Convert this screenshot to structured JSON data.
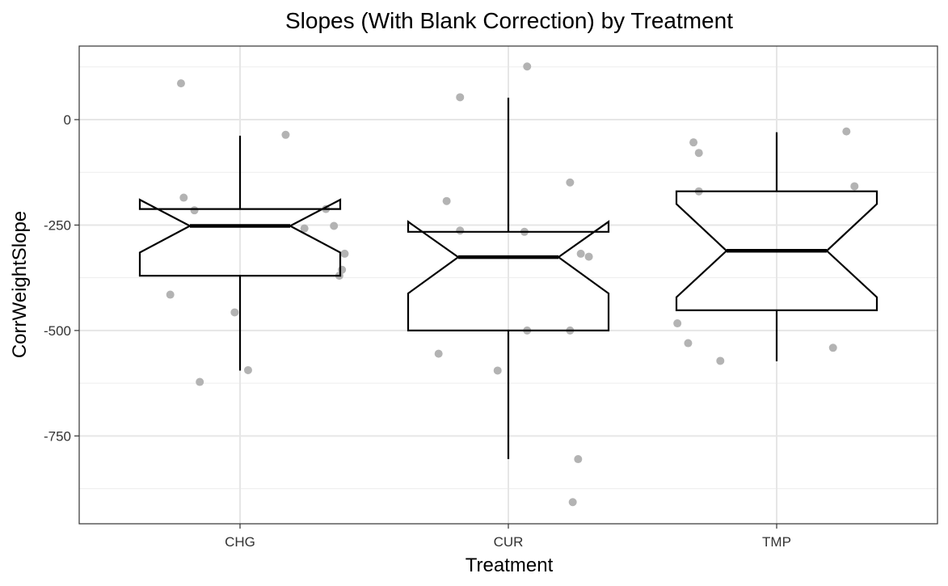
{
  "chart_data": {
    "type": "boxplot",
    "title": "Slopes (With Blank Correction) by Treatment",
    "xlabel": "Treatment",
    "ylabel": "CorrWeightSlope",
    "categories": [
      "CHG",
      "CUR",
      "TMP"
    ],
    "ylim": [
      -960,
      175
    ],
    "y_ticks": [
      0,
      -250,
      -500,
      -750
    ],
    "y_tick_labels": [
      "0",
      "-250",
      "-500",
      "-750"
    ],
    "notched": true,
    "grid": true,
    "boxes": [
      {
        "category": "CHG",
        "whisker_low": -595,
        "q1": -370,
        "median": -252,
        "q3": -212,
        "whisker_high": -38,
        "notch_low": -315,
        "notch_high": -190
      },
      {
        "category": "CUR",
        "whisker_low": -805,
        "q1": -500,
        "median": -326,
        "q3": -266,
        "whisker_high": 52,
        "notch_low": -412,
        "notch_high": -242
      },
      {
        "category": "TMP",
        "whisker_low": -573,
        "q1": -452,
        "median": -311,
        "q3": -170,
        "whisker_high": -30,
        "notch_low": -421,
        "notch_high": -200
      }
    ],
    "points": [
      {
        "category": "CHG",
        "jitter": -0.22,
        "y": 86
      },
      {
        "category": "CHG",
        "jitter": 0.17,
        "y": -36
      },
      {
        "category": "CHG",
        "jitter": -0.21,
        "y": -185
      },
      {
        "category": "CHG",
        "jitter": -0.17,
        "y": -215
      },
      {
        "category": "CHG",
        "jitter": 0.32,
        "y": -212
      },
      {
        "category": "CHG",
        "jitter": 0.35,
        "y": -252
      },
      {
        "category": "CHG",
        "jitter": 0.24,
        "y": -258
      },
      {
        "category": "CHG",
        "jitter": 0.39,
        "y": -318
      },
      {
        "category": "CHG",
        "jitter": 0.38,
        "y": -356
      },
      {
        "category": "CHG",
        "jitter": 0.37,
        "y": -370
      },
      {
        "category": "CHG",
        "jitter": -0.26,
        "y": -415
      },
      {
        "category": "CHG",
        "jitter": -0.02,
        "y": -457
      },
      {
        "category": "CHG",
        "jitter": 0.03,
        "y": -594
      },
      {
        "category": "CHG",
        "jitter": -0.15,
        "y": -622
      },
      {
        "category": "CUR",
        "jitter": -0.18,
        "y": 53
      },
      {
        "category": "CUR",
        "jitter": 0.07,
        "y": 126
      },
      {
        "category": "CUR",
        "jitter": -0.23,
        "y": -193
      },
      {
        "category": "CUR",
        "jitter": 0.23,
        "y": -149
      },
      {
        "category": "CUR",
        "jitter": -0.18,
        "y": -263
      },
      {
        "category": "CUR",
        "jitter": 0.06,
        "y": -266
      },
      {
        "category": "CUR",
        "jitter": 0.27,
        "y": -318
      },
      {
        "category": "CUR",
        "jitter": 0.3,
        "y": -325
      },
      {
        "category": "CUR",
        "jitter": 0.07,
        "y": -500
      },
      {
        "category": "CUR",
        "jitter": 0.23,
        "y": -500
      },
      {
        "category": "CUR",
        "jitter": -0.26,
        "y": -555
      },
      {
        "category": "CUR",
        "jitter": -0.04,
        "y": -595
      },
      {
        "category": "CUR",
        "jitter": 0.26,
        "y": -805
      },
      {
        "category": "CUR",
        "jitter": 0.24,
        "y": -907
      },
      {
        "category": "TMP",
        "jitter": -0.31,
        "y": -54
      },
      {
        "category": "TMP",
        "jitter": -0.29,
        "y": -79
      },
      {
        "category": "TMP",
        "jitter": 0.26,
        "y": -28
      },
      {
        "category": "TMP",
        "jitter": -0.29,
        "y": -170
      },
      {
        "category": "TMP",
        "jitter": 0.29,
        "y": -158
      },
      {
        "category": "TMP",
        "jitter": -0.37,
        "y": -483
      },
      {
        "category": "TMP",
        "jitter": -0.33,
        "y": -530
      },
      {
        "category": "TMP",
        "jitter": -0.21,
        "y": -572
      },
      {
        "category": "TMP",
        "jitter": 0.21,
        "y": -541
      }
    ],
    "colors": {
      "points": "#b3b3b3",
      "box_stroke": "#000000",
      "box_fill": "#ffffff",
      "grid": "#e6e6e6",
      "panel_border": "#333333"
    }
  }
}
